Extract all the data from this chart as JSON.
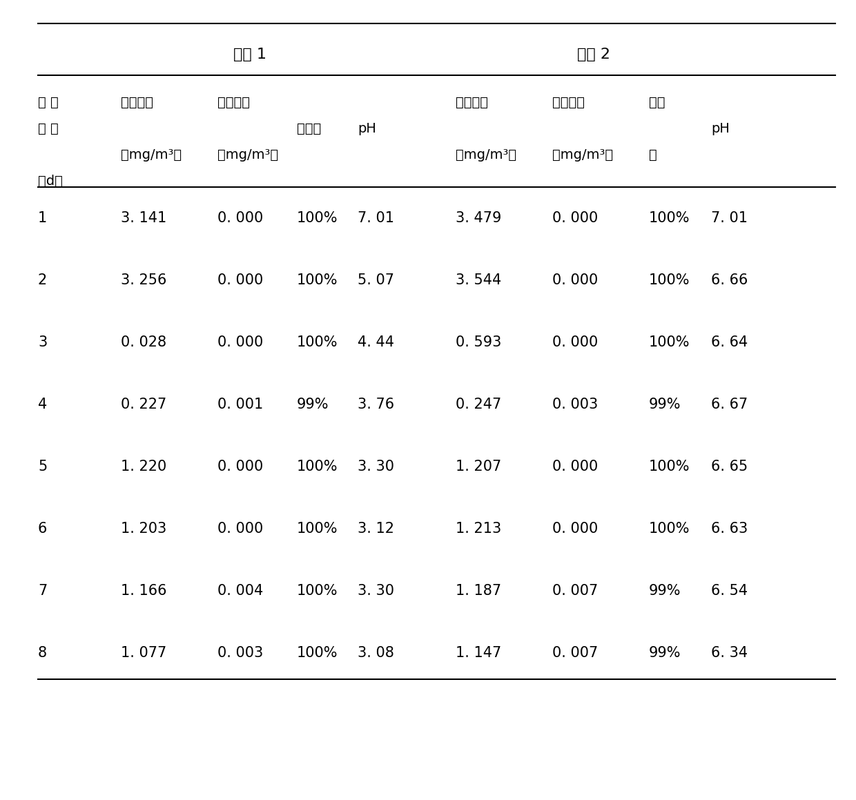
{
  "device1_label": "设备 1",
  "device2_label": "设备 2",
  "header_line1_col1": "运 行",
  "header_line2_col1": "时 间",
  "header_line3_col1": "（d）",
  "header_sub1_d1": "进气浓度",
  "header_sub2_d1": "出气浓度",
  "header_sub3_d1": "去除率",
  "header_sub4_d1": "pH",
  "header_unit1_d1": "（mg/m³）",
  "header_unit2_d1": "（mg/m³）",
  "header_sub1_d2": "进气浓度",
  "header_sub2_d2": "出气浓度",
  "header_sub3_d2": "去除",
  "header_sub3b_d2": "率",
  "header_sub4_d2": "pH",
  "header_unit1_d2": "（mg/m³）",
  "header_unit2_d2": "（mg/m³）",
  "rows": [
    [
      1,
      "3. 141",
      "0. 000",
      "100%",
      "7. 01",
      "3. 479",
      "0. 000",
      "100%",
      "7. 01"
    ],
    [
      2,
      "3. 256",
      "0. 000",
      "100%",
      "5. 07",
      "3. 544",
      "0. 000",
      "100%",
      "6. 66"
    ],
    [
      3,
      "0. 028",
      "0. 000",
      "100%",
      "4. 44",
      "0. 593",
      "0. 000",
      "100%",
      "6. 64"
    ],
    [
      4,
      "0. 227",
      "0. 001",
      "99%",
      "3. 76",
      "0. 247",
      "0. 003",
      "99%",
      "6. 67"
    ],
    [
      5,
      "1. 220",
      "0. 000",
      "100%",
      "3. 30",
      "1. 207",
      "0. 000",
      "100%",
      "6. 65"
    ],
    [
      6,
      "1. 203",
      "0. 000",
      "100%",
      "3. 12",
      "1. 213",
      "0. 000",
      "100%",
      "6. 63"
    ],
    [
      7,
      "1. 166",
      "0. 004",
      "100%",
      "3. 30",
      "1. 187",
      "0. 007",
      "99%",
      "6. 54"
    ],
    [
      8,
      "1. 077",
      "0. 003",
      "100%",
      "3. 08",
      "1. 147",
      "0. 007",
      "99%",
      "6. 34"
    ]
  ],
  "bg_color": "#ffffff",
  "text_color": "#000000",
  "font_size_header": 16,
  "font_size_data": 15,
  "font_size_subheader": 14
}
